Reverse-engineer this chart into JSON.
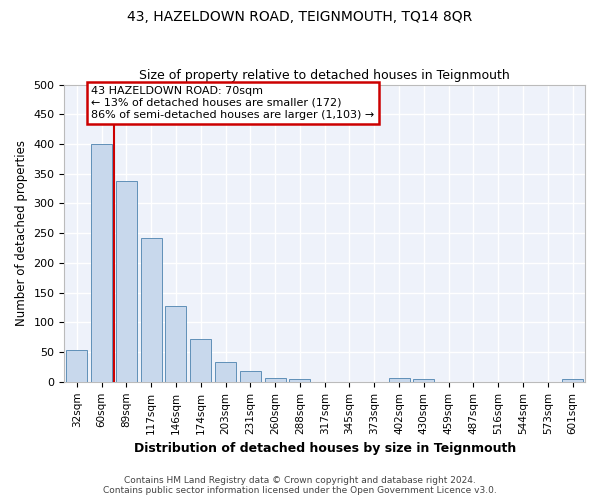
{
  "title": "43, HAZELDOWN ROAD, TEIGNMOUTH, TQ14 8QR",
  "subtitle": "Size of property relative to detached houses in Teignmouth",
  "xlabel": "Distribution of detached houses by size in Teignmouth",
  "ylabel": "Number of detached properties",
  "bar_color": "#c8d8ec",
  "bar_edge_color": "#6090b8",
  "background_color": "#eef2fa",
  "grid_color": "#ffffff",
  "categories": [
    "32sqm",
    "60sqm",
    "89sqm",
    "117sqm",
    "146sqm",
    "174sqm",
    "203sqm",
    "231sqm",
    "260sqm",
    "288sqm",
    "317sqm",
    "345sqm",
    "373sqm",
    "402sqm",
    "430sqm",
    "459sqm",
    "487sqm",
    "516sqm",
    "544sqm",
    "573sqm",
    "601sqm"
  ],
  "values": [
    53,
    400,
    338,
    242,
    128,
    72,
    34,
    18,
    7,
    5,
    0,
    0,
    0,
    6,
    5,
    0,
    0,
    0,
    0,
    0,
    4
  ],
  "ylim": [
    0,
    500
  ],
  "yticks": [
    0,
    50,
    100,
    150,
    200,
    250,
    300,
    350,
    400,
    450,
    500
  ],
  "red_line_x": 1.5,
  "annotation_text_line1": "43 HAZELDOWN ROAD: 70sqm",
  "annotation_text_line2": "← 13% of detached houses are smaller (172)",
  "annotation_text_line3": "86% of semi-detached houses are larger (1,103) →",
  "annotation_box_color": "#ffffff",
  "annotation_box_edge": "#cc0000",
  "footer_line1": "Contains HM Land Registry data © Crown copyright and database right 2024.",
  "footer_line2": "Contains public sector information licensed under the Open Government Licence v3.0.",
  "fig_facecolor": "#ffffff"
}
